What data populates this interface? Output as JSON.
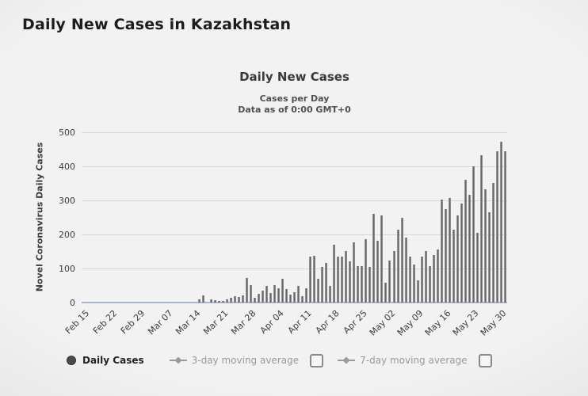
{
  "page": {
    "title": "Daily New Cases in Kazakhstan"
  },
  "chart": {
    "title": "Daily New Cases",
    "subtitle1": "Cases per Day",
    "subtitle2": "Data as of 0:00 GMT+0",
    "y_axis_title": "Novel Coronavirus Daily Cases",
    "legend": {
      "daily_label": "Daily Cases",
      "ma3_label": "3-day moving average",
      "ma7_label": "7-day moving average"
    }
  },
  "colors": {
    "bar": "#6e6e6e",
    "axis_line": "#a9b6cd",
    "gridline": "#d7d7d7",
    "legend_muted": "#9a9a9a"
  },
  "chart_data": {
    "type": "bar",
    "title": "Daily New Cases",
    "xlabel": "",
    "ylabel": "Novel Coronavirus Daily Cases",
    "ylim": [
      0,
      500
    ],
    "yticks": [
      0,
      100,
      200,
      300,
      400,
      500
    ],
    "grid": true,
    "legend_position": "bottom",
    "x_tick_labels": [
      "Feb 15",
      "Feb 22",
      "Feb 29",
      "Mar 07",
      "Mar 14",
      "Mar 21",
      "Mar 28",
      "Apr 04",
      "Apr 11",
      "Apr 18",
      "Apr 25",
      "May 02",
      "May 09",
      "May 16",
      "May 23",
      "May 30"
    ],
    "x_tick_day_interval": 7,
    "x": [
      "Feb 15",
      "Feb 16",
      "Feb 17",
      "Feb 18",
      "Feb 19",
      "Feb 20",
      "Feb 21",
      "Feb 22",
      "Feb 23",
      "Feb 24",
      "Feb 25",
      "Feb 26",
      "Feb 27",
      "Feb 28",
      "Feb 29",
      "Mar 1",
      "Mar 2",
      "Mar 3",
      "Mar 4",
      "Mar 5",
      "Mar 6",
      "Mar 7",
      "Mar 8",
      "Mar 9",
      "Mar 10",
      "Mar 11",
      "Mar 12",
      "Mar 13",
      "Mar 14",
      "Mar 15",
      "Mar 16",
      "Mar 17",
      "Mar 18",
      "Mar 19",
      "Mar 20",
      "Mar 21",
      "Mar 22",
      "Mar 23",
      "Mar 24",
      "Mar 25",
      "Mar 26",
      "Mar 27",
      "Mar 28",
      "Mar 29",
      "Mar 30",
      "Mar 31",
      "Apr 1",
      "Apr 2",
      "Apr 3",
      "Apr 4",
      "Apr 5",
      "Apr 6",
      "Apr 7",
      "Apr 8",
      "Apr 9",
      "Apr 10",
      "Apr 11",
      "Apr 12",
      "Apr 13",
      "Apr 14",
      "Apr 15",
      "Apr 16",
      "Apr 17",
      "Apr 18",
      "Apr 19",
      "Apr 20",
      "Apr 21",
      "Apr 22",
      "Apr 23",
      "Apr 24",
      "Apr 25",
      "Apr 26",
      "Apr 27",
      "Apr 28",
      "Apr 29",
      "Apr 30",
      "May 1",
      "May 2",
      "May 3",
      "May 4",
      "May 5",
      "May 6",
      "May 7",
      "May 8",
      "May 9",
      "May 10",
      "May 11",
      "May 12",
      "May 13",
      "May 14",
      "May 15",
      "May 16",
      "May 17",
      "May 18",
      "May 19",
      "May 20",
      "May 21",
      "May 22",
      "May 23",
      "May 24",
      "May 25",
      "May 26",
      "May 27",
      "May 28",
      "May 29",
      "May 30",
      "May 31"
    ],
    "values": [
      0,
      0,
      0,
      0,
      0,
      0,
      0,
      0,
      0,
      0,
      0,
      0,
      0,
      0,
      0,
      0,
      0,
      0,
      0,
      0,
      0,
      0,
      0,
      0,
      0,
      0,
      0,
      0,
      0,
      9,
      21,
      0,
      9,
      8,
      5,
      5,
      9,
      14,
      18,
      17,
      21,
      72,
      51,
      15,
      25,
      35,
      50,
      27,
      52,
      43,
      70,
      39,
      23,
      31,
      50,
      19,
      43,
      136,
      138,
      70,
      105,
      116,
      50,
      170,
      136,
      134,
      151,
      120,
      178,
      108,
      108,
      186,
      105,
      260,
      182,
      256,
      58,
      124,
      151,
      213,
      250,
      190,
      136,
      112,
      66,
      136,
      151,
      108,
      140,
      155,
      302,
      275,
      306,
      213,
      256,
      290,
      360,
      317,
      399,
      204,
      433,
      332,
      266,
      351,
      445,
      472,
      445
    ],
    "series_name": "Daily Cases"
  }
}
